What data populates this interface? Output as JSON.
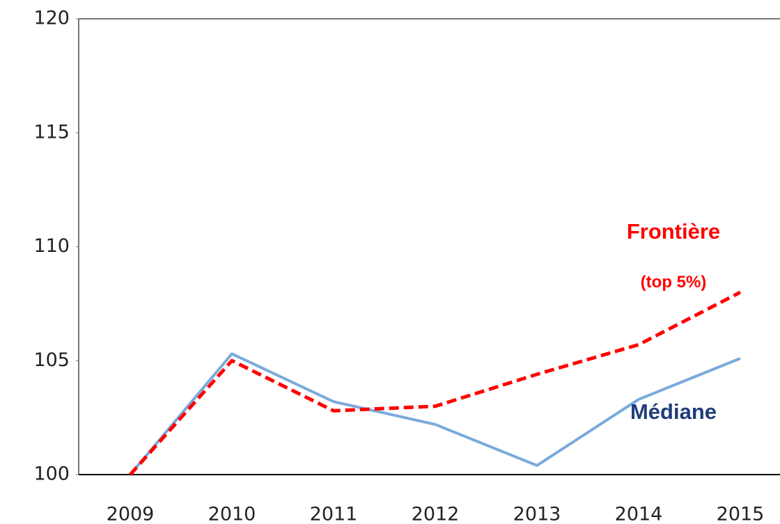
{
  "chart_data": {
    "type": "line",
    "categories": [
      "2009",
      "2010",
      "2011",
      "2012",
      "2013",
      "2014",
      "2015"
    ],
    "series": [
      {
        "name": "Médiane",
        "color": "#7aaadc",
        "dash": false,
        "values": [
          100,
          105.3,
          103.2,
          102.2,
          100.4,
          103.3,
          105.1
        ]
      },
      {
        "name": "Frontière",
        "color": "#ff0000",
        "dash": true,
        "values": [
          100,
          105,
          102.8,
          103,
          104.4,
          105.7,
          108
        ]
      }
    ],
    "annotations": [
      {
        "text": "Frontière",
        "color": "#ff0000",
        "x": "2014",
        "y": 110.6
      },
      {
        "text": "(top 5%)",
        "color": "#ff0000",
        "x": "2014",
        "y": 108.4
      },
      {
        "text": "Médiane",
        "color": "#1f3d7a",
        "x": "2014",
        "y": 102.7
      }
    ],
    "ylim": [
      100,
      120
    ],
    "yticks": [
      100,
      105,
      110,
      115,
      120
    ],
    "grid": false
  }
}
